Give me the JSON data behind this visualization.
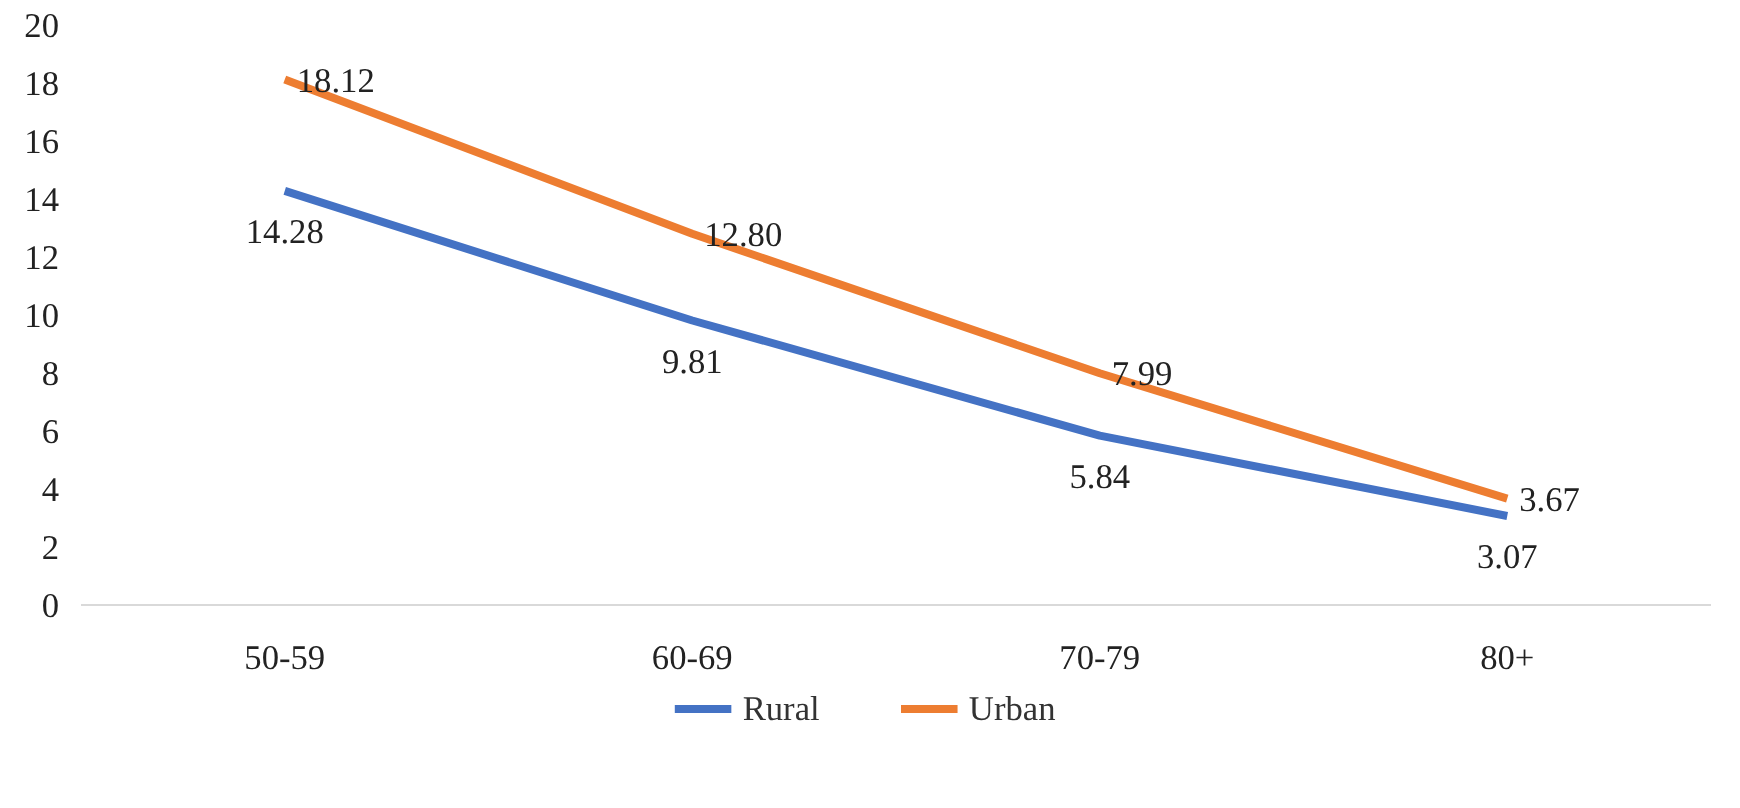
{
  "chart_data": {
    "type": "line",
    "categories": [
      "50-59",
      "60-69",
      "70-79",
      "80+"
    ],
    "ylim": [
      0,
      20
    ],
    "yticks": [
      0,
      2,
      4,
      6,
      8,
      10,
      12,
      14,
      16,
      18,
      20
    ],
    "legend": "bottom",
    "series": [
      {
        "name": "Rural",
        "color": "#4472c4",
        "values": [
          14.28,
          9.81,
          5.84,
          3.07
        ],
        "value_labels": [
          "14.28",
          "9.81",
          "5.84",
          "3.07"
        ]
      },
      {
        "name": "Urban",
        "color": "#ed7d31",
        "values": [
          18.12,
          12.8,
          7.99,
          3.67
        ],
        "value_labels": [
          "18.12",
          "12.80",
          "7.99",
          "3.67"
        ]
      }
    ]
  }
}
